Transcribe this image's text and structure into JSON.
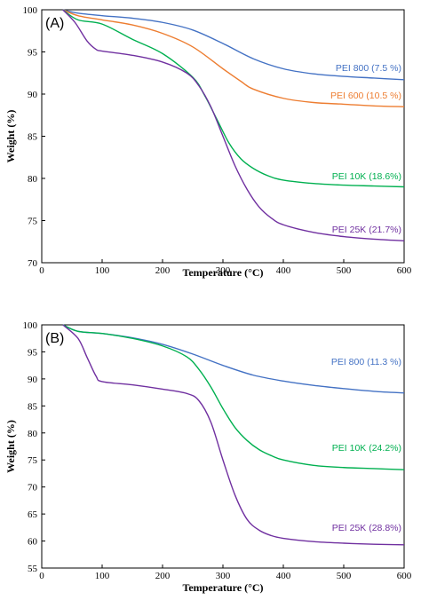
{
  "colors": {
    "PEI 800": "#4472c4",
    "PEI 600": "#ed7d31",
    "PEI 10K": "#00b050",
    "PEI 25K": "#7030a0",
    "axis": "#000000"
  },
  "chart_data": [
    {
      "panel_label": "(A)",
      "type": "line",
      "xlabel": "Temperature (°C)",
      "ylabel": "Weight (%)",
      "xlim": [
        0,
        600
      ],
      "ylim": [
        70,
        100
      ],
      "xticks": [
        0,
        100,
        200,
        300,
        400,
        500,
        600
      ],
      "yticks": [
        70,
        75,
        80,
        85,
        90,
        95,
        100
      ],
      "grid": false,
      "series": [
        {
          "name": "PEI 800 (7.5 %)",
          "color_key": "PEI 800",
          "x": [
            35,
            60,
            100,
            150,
            200,
            250,
            300,
            350,
            400,
            450,
            500,
            550,
            600
          ],
          "y": [
            100,
            99.6,
            99.3,
            99.0,
            98.5,
            97.6,
            96.0,
            94.2,
            93.0,
            92.4,
            92.1,
            91.9,
            91.7
          ]
        },
        {
          "name": "PEI 600 (10.5 %)",
          "color_key": "PEI 600",
          "x": [
            35,
            60,
            100,
            150,
            200,
            250,
            300,
            330,
            350,
            400,
            450,
            500,
            550,
            600
          ],
          "y": [
            100,
            99.3,
            98.8,
            98.2,
            97.2,
            95.6,
            93.0,
            91.5,
            90.6,
            89.5,
            89.0,
            88.8,
            88.6,
            88.5
          ],
          "label_color_key": "PEI 600"
        },
        {
          "name": "PEI 10K (18.6%)",
          "color_key": "PEI 10K",
          "x": [
            35,
            60,
            100,
            150,
            200,
            250,
            270,
            290,
            310,
            330,
            350,
            375,
            400,
            450,
            500,
            550,
            600
          ],
          "y": [
            100,
            98.8,
            98.3,
            96.5,
            94.8,
            92.0,
            89.8,
            87.0,
            84.2,
            82.3,
            81.2,
            80.3,
            79.8,
            79.4,
            79.2,
            79.1,
            79.0
          ]
        },
        {
          "name": "PEI 25K (21.7%)",
          "color_key": "PEI 25K",
          "x": [
            35,
            55,
            75,
            90,
            100,
            150,
            200,
            240,
            260,
            280,
            300,
            320,
            340,
            360,
            380,
            400,
            450,
            500,
            550,
            600
          ],
          "y": [
            100,
            98.5,
            96.3,
            95.3,
            95.1,
            94.6,
            93.8,
            92.5,
            91.0,
            88.5,
            85.0,
            81.5,
            78.7,
            76.6,
            75.3,
            74.5,
            73.6,
            73.1,
            72.8,
            72.6
          ]
        }
      ]
    },
    {
      "panel_label": "(B)",
      "type": "line",
      "xlabel": "Temperature (°C)",
      "ylabel": "Weight (%)",
      "xlim": [
        0,
        600
      ],
      "ylim": [
        55,
        100
      ],
      "xticks": [
        0,
        100,
        200,
        300,
        400,
        500,
        600
      ],
      "yticks": [
        55,
        60,
        65,
        70,
        75,
        80,
        85,
        90,
        95,
        100
      ],
      "grid": false,
      "series": [
        {
          "name": "PEI 800 (11.3 %)",
          "color_key": "PEI 800",
          "x": [
            35,
            60,
            100,
            150,
            200,
            250,
            300,
            350,
            400,
            450,
            500,
            550,
            600
          ],
          "y": [
            100,
            98.8,
            98.4,
            97.6,
            96.4,
            94.6,
            92.5,
            90.7,
            89.6,
            88.8,
            88.2,
            87.7,
            87.4
          ]
        },
        {
          "name": "PEI 10K (24.2%)",
          "color_key": "PEI 10K",
          "x": [
            35,
            60,
            100,
            150,
            200,
            240,
            260,
            280,
            300,
            320,
            340,
            360,
            380,
            400,
            450,
            500,
            550,
            600
          ],
          "y": [
            100,
            98.8,
            98.4,
            97.5,
            96.1,
            94.1,
            91.8,
            88.5,
            84.5,
            81.0,
            78.6,
            76.9,
            75.8,
            75.0,
            74.0,
            73.6,
            73.4,
            73.2
          ]
        },
        {
          "name": "PEI 25K (28.8%)",
          "color_key": "PEI 25K",
          "x": [
            35,
            60,
            75,
            90,
            100,
            150,
            200,
            240,
            260,
            280,
            300,
            320,
            340,
            360,
            380,
            400,
            450,
            500,
            550,
            600
          ],
          "y": [
            100,
            97.5,
            94.0,
            90.5,
            89.5,
            88.9,
            88.1,
            87.3,
            86.0,
            82.0,
            75.0,
            68.5,
            64.0,
            62.0,
            61.0,
            60.5,
            59.9,
            59.6,
            59.4,
            59.3
          ]
        }
      ]
    }
  ]
}
